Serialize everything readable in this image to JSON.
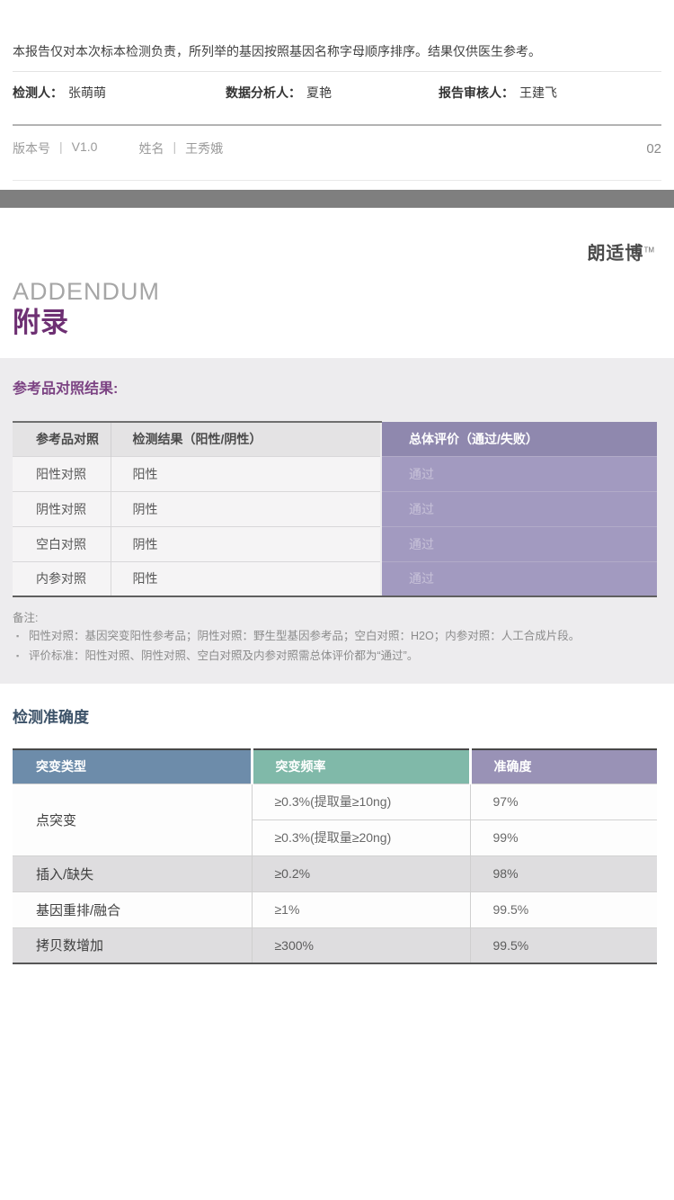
{
  "header": {
    "disclaimer": "本报告仅对本次标本检测负责，所列举的基因按照基因名称字母顺序排序。结果仅供医生参考。",
    "signers": [
      {
        "label": "检测人：",
        "name": "张萌萌"
      },
      {
        "label": "数据分析人：",
        "name": "夏艳"
      },
      {
        "label": "报告审核人：",
        "name": "王建飞"
      }
    ],
    "meta": {
      "version_label": "版本号",
      "version_value": "V1.0",
      "name_label": "姓名",
      "name_value": "王秀娥",
      "divider": "|",
      "page_number": "02"
    }
  },
  "brand": {
    "name": "朗适博",
    "tm": "TM"
  },
  "addendum": {
    "en": "ADDENDUM",
    "zh": "附录"
  },
  "reference_section": {
    "title": "参考品对照结果:",
    "table": {
      "headers": [
        "参考品对照",
        "检测结果（阳性/阴性）",
        "总体评价（通过/失败）"
      ],
      "rows": [
        {
          "control": "阳性对照",
          "result": "阳性",
          "evaluation": "通过"
        },
        {
          "control": "阴性对照",
          "result": "阴性",
          "evaluation": "通过"
        },
        {
          "control": "空白对照",
          "result": "阴性",
          "evaluation": "通过"
        },
        {
          "control": "内参对照",
          "result": "阳性",
          "evaluation": "通过"
        }
      ]
    },
    "notes": {
      "title": "备注:",
      "bullet": "▪",
      "items": [
        "阳性对照：基因突变阳性参考品；阴性对照：野生型基因参考品；空白对照：H2O；内参对照：人工合成片段。",
        "评价标准：阳性对照、阴性对照、空白对照及内参对照需总体评价都为“通过”。"
      ]
    }
  },
  "accuracy_section": {
    "title": "检测准确度",
    "table": {
      "headers": [
        "突变类型",
        "突变频率",
        "准确度"
      ],
      "rows": [
        {
          "type": "点突变",
          "freq": "≥0.3%(提取量≥10ng)",
          "accuracy": "97%"
        },
        {
          "freq": "≥0.3%(提取量≥20ng)",
          "accuracy": "99%"
        },
        {
          "type": "插入/缺失",
          "freq": "≥0.2%",
          "accuracy": "98%"
        },
        {
          "type": "基因重排/融合",
          "freq": "≥1%",
          "accuracy": "99.5%"
        },
        {
          "type": "拷贝数增加",
          "freq": "≥300%",
          "accuracy": "99.5%"
        }
      ]
    }
  },
  "colors": {
    "gray_bar": "#7f7f7f",
    "section_bg": "#edecee",
    "accent_purple_dark": "#6e3073",
    "accent_purple_header": "#8f88ae",
    "accent_purple_body": "#a29ac0",
    "accuracy_blue": "#6d8caa",
    "accuracy_teal": "#80b9a9",
    "accuracy_purple": "#9992b6",
    "heading_blue": "#3c5268"
  }
}
